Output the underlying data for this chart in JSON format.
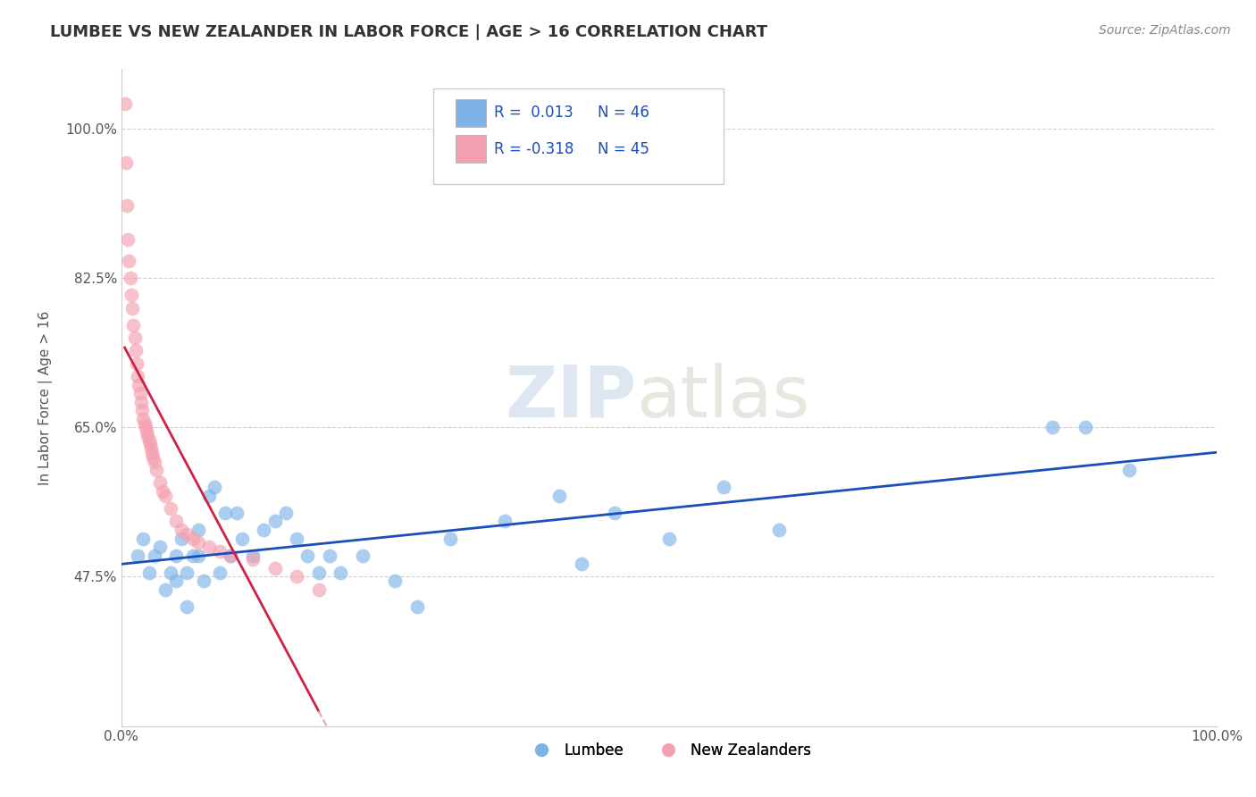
{
  "title": "LUMBEE VS NEW ZEALANDER IN LABOR FORCE | AGE > 16 CORRELATION CHART",
  "source_text": "Source: ZipAtlas.com",
  "ylabel": "In Labor Force | Age > 16",
  "xlim": [
    0.0,
    100.0
  ],
  "ylim": [
    30.0,
    107.0
  ],
  "yticks": [
    47.5,
    65.0,
    82.5,
    100.0
  ],
  "ytick_labels": [
    "47.5%",
    "65.0%",
    "82.5%",
    "100.0%"
  ],
  "xtick_labels": [
    "0.0%",
    "100.0%"
  ],
  "blue_color": "#7EB3E8",
  "pink_color": "#F4A0B0",
  "trend_blue_color": "#1A4FBB",
  "trend_pink_color": "#CC2244",
  "trend_pink_dash_color": "#E8A0B0",
  "lumbee_x": [
    1.5,
    2.0,
    2.5,
    3.0,
    3.5,
    4.0,
    4.5,
    5.0,
    5.0,
    5.5,
    6.0,
    6.0,
    6.5,
    7.0,
    7.0,
    7.5,
    8.0,
    8.5,
    9.0,
    9.5,
    10.0,
    10.5,
    11.0,
    12.0,
    13.0,
    14.0,
    15.0,
    16.0,
    17.0,
    18.0,
    19.0,
    20.0,
    22.0,
    25.0,
    27.0,
    30.0,
    35.0,
    40.0,
    42.0,
    45.0,
    50.0,
    55.0,
    60.0,
    85.0,
    88.0,
    92.0
  ],
  "lumbee_y": [
    50.0,
    52.0,
    48.0,
    50.0,
    51.0,
    46.0,
    48.0,
    50.0,
    47.0,
    52.0,
    48.0,
    44.0,
    50.0,
    50.0,
    53.0,
    47.0,
    57.0,
    58.0,
    48.0,
    55.0,
    50.0,
    55.0,
    52.0,
    50.0,
    53.0,
    54.0,
    55.0,
    52.0,
    50.0,
    48.0,
    50.0,
    48.0,
    50.0,
    47.0,
    44.0,
    52.0,
    54.0,
    57.0,
    49.0,
    55.0,
    52.0,
    58.0,
    53.0,
    65.0,
    65.0,
    60.0
  ],
  "nz_x": [
    0.3,
    0.4,
    0.5,
    0.6,
    0.7,
    0.8,
    0.9,
    1.0,
    1.1,
    1.2,
    1.3,
    1.4,
    1.5,
    1.6,
    1.7,
    1.8,
    1.9,
    2.0,
    2.1,
    2.2,
    2.3,
    2.4,
    2.5,
    2.6,
    2.7,
    2.8,
    2.9,
    3.0,
    3.2,
    3.5,
    3.8,
    4.0,
    4.5,
    5.0,
    5.5,
    6.0,
    6.5,
    7.0,
    8.0,
    9.0,
    10.0,
    12.0,
    14.0,
    16.0,
    18.0
  ],
  "nz_y": [
    103.0,
    96.0,
    91.0,
    87.0,
    84.5,
    82.5,
    80.5,
    79.0,
    77.0,
    75.5,
    74.0,
    72.5,
    71.0,
    70.0,
    69.0,
    68.0,
    67.0,
    66.0,
    65.5,
    65.0,
    64.5,
    64.0,
    63.5,
    63.0,
    62.5,
    62.0,
    61.5,
    61.0,
    60.0,
    58.5,
    57.5,
    57.0,
    55.5,
    54.0,
    53.0,
    52.5,
    52.0,
    51.5,
    51.0,
    50.5,
    50.0,
    49.5,
    48.5,
    47.5,
    46.0
  ]
}
